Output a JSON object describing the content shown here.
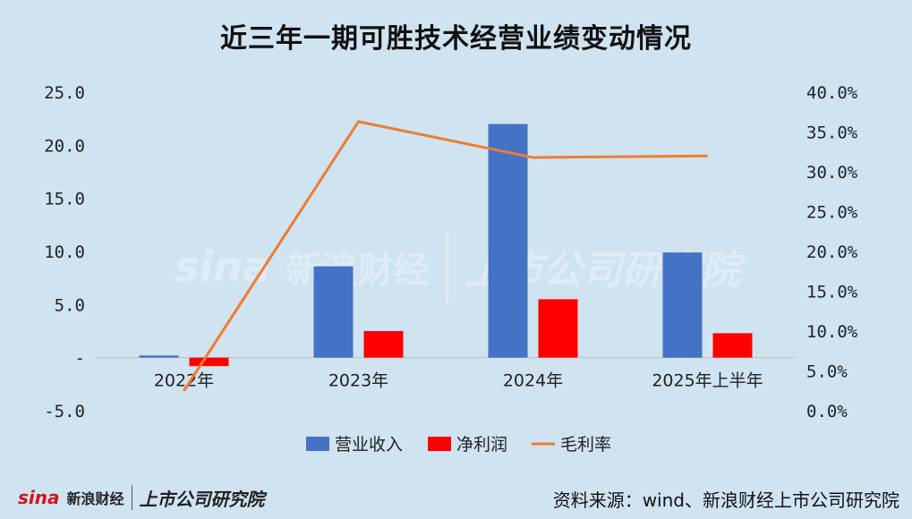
{
  "title": "近三年一期可胜技术经营业绩变动情况",
  "source": "资料来源：wind、新浪财经上市公司研究院",
  "logo": {
    "sina": "sina",
    "sina_cn": "新浪财经",
    "research": "上市公司研究院"
  },
  "watermark": {
    "sina": "sina",
    "sina_cn": "新浪财经",
    "research": "上市公司研究院"
  },
  "chart_data": {
    "type": "bar",
    "categories": [
      "2022年",
      "2023年",
      "2024年",
      "2025年上半年"
    ],
    "series": [
      {
        "name": "营业收入",
        "type": "bar",
        "axis": "left",
        "color": "#4472c4",
        "values": [
          0.2,
          8.6,
          22.0,
          9.9
        ]
      },
      {
        "name": "净利润",
        "type": "bar",
        "axis": "left",
        "color": "#ff0000",
        "values": [
          -0.8,
          2.5,
          5.5,
          2.3
        ]
      },
      {
        "name": "毛利率",
        "type": "line",
        "axis": "right",
        "color": "#ed7d31",
        "values": [
          2.5,
          36.3,
          31.8,
          32.0
        ]
      }
    ],
    "left_axis": {
      "ylim": [
        -5,
        25
      ],
      "ticks": [
        "25.0",
        "20.0",
        "15.0",
        "10.0",
        "5.0",
        "-",
        "-5.0"
      ],
      "tick_values": [
        25,
        20,
        15,
        10,
        5,
        0,
        -5
      ]
    },
    "right_axis": {
      "ylim": [
        0,
        40
      ],
      "ticks": [
        "40.0%",
        "35.0%",
        "30.0%",
        "25.0%",
        "20.0%",
        "15.0%",
        "10.0%",
        "5.0%",
        "0.0%"
      ],
      "tick_values": [
        40,
        35,
        30,
        25,
        20,
        15,
        10,
        5,
        0
      ]
    },
    "legend": "bottom",
    "grid": false
  }
}
